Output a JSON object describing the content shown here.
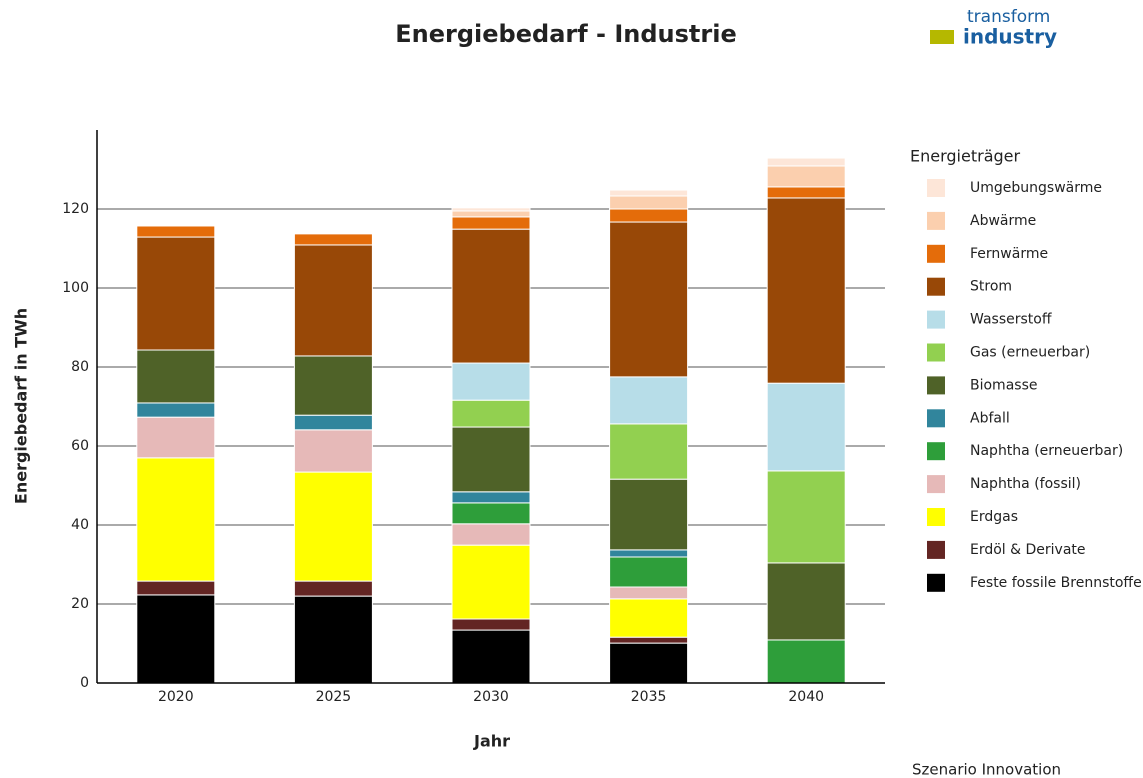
{
  "chart_data": {
    "type": "stacked_bar",
    "title": "Energiebedarf - Industrie",
    "logo": {
      "line1": "transform",
      "line2": "industry"
    },
    "x_label": "Jahr",
    "y_label": "Energiebedarf in TWh",
    "legend_title": "Energieträger",
    "footnote": "Szenario Innovation",
    "categories": [
      "2020",
      "2025",
      "2030",
      "2035",
      "2040"
    ],
    "series": [
      {
        "name": "Feste fossile Brennstoffe",
        "color": "#000000",
        "values": [
          22.3,
          22.0,
          13.4,
          10.1,
          0
        ]
      },
      {
        "name": "Erdöl & Derivate",
        "color": "#632523",
        "values": [
          3.5,
          3.8,
          2.8,
          1.5,
          0
        ]
      },
      {
        "name": "Erdgas",
        "color": "#ffff00",
        "values": [
          31.2,
          27.6,
          18.7,
          9.7,
          0
        ]
      },
      {
        "name": "Naphtha (fossil)",
        "color": "#e6b9b8",
        "values": [
          10.3,
          10.7,
          5.4,
          3.0,
          0
        ]
      },
      {
        "name": "Naphtha (erneuerbar)",
        "color": "#2e9e3a",
        "values": [
          0,
          0,
          5.3,
          7.6,
          10.9
        ]
      },
      {
        "name": "Abfall",
        "color": "#31859c",
        "values": [
          3.6,
          3.7,
          2.8,
          1.8,
          0
        ]
      },
      {
        "name": "Biomasse",
        "color": "#4f6228",
        "values": [
          13.4,
          15.0,
          16.4,
          17.9,
          19.5
        ]
      },
      {
        "name": "Gas (erneuerbar)",
        "color": "#92d050",
        "values": [
          0,
          0,
          6.8,
          14.0,
          23.3
        ]
      },
      {
        "name": "Wasserstoff",
        "color": "#b7dde8",
        "values": [
          0,
          0,
          9.4,
          11.9,
          22.2
        ]
      },
      {
        "name": "Strom",
        "color": "#984807",
        "values": [
          28.6,
          28.1,
          33.9,
          39.2,
          46.9
        ]
      },
      {
        "name": "Fernwärme",
        "color": "#e46c0a",
        "values": [
          2.8,
          2.8,
          3.1,
          3.3,
          2.8
        ]
      },
      {
        "name": "Abwärme",
        "color": "#fbcfae",
        "values": [
          0,
          0,
          1.5,
          3.3,
          5.3
        ]
      },
      {
        "name": "Umgebungswärme",
        "color": "#fde6d8",
        "values": [
          0,
          0,
          0.8,
          1.5,
          2.0
        ]
      }
    ],
    "ylim": [
      0,
      140
    ],
    "yticks": [
      0,
      20,
      40,
      60,
      80,
      100,
      120
    ],
    "grid": true
  }
}
